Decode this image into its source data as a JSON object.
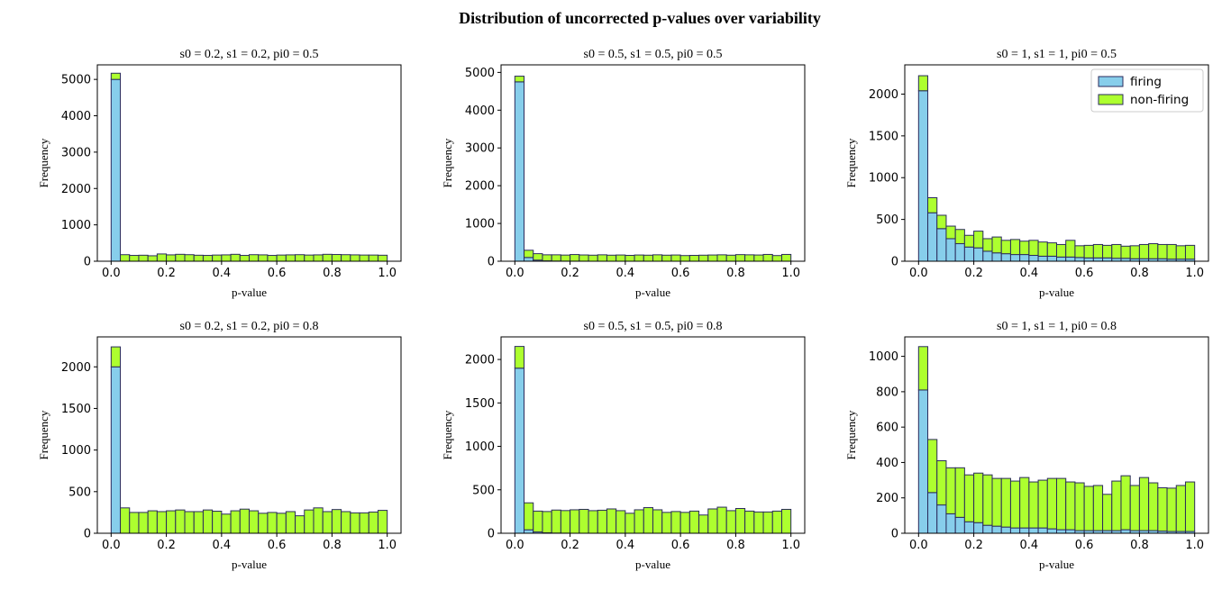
{
  "figure": {
    "title": "Distribution of uncorrected p-values over variability"
  },
  "colors": {
    "firing": "#87ceeb",
    "non_firing": "#adff2f",
    "edge": "#2b2b5c"
  },
  "legend": {
    "placement": "upper-right of top-right panel",
    "entries": [
      "firing",
      "non-firing"
    ]
  },
  "chart_data": [
    {
      "type": "bar",
      "stacked": true,
      "title": "s0 = 0.2, s1 = 0.2, pi0 = 0.5",
      "xlabel": "p-value",
      "ylabel": "Frequency",
      "xlim": [
        -0.05,
        1.05
      ],
      "ylim": [
        0,
        5400
      ],
      "xticks": [
        0.0,
        0.2,
        0.4,
        0.6,
        0.8,
        1.0
      ],
      "yticks": [
        0,
        1000,
        2000,
        3000,
        4000,
        5000
      ],
      "bins": 30,
      "series": [
        {
          "name": "firing",
          "values": [
            5000,
            0,
            0,
            0,
            0,
            0,
            0,
            0,
            0,
            0,
            0,
            0,
            0,
            0,
            0,
            0,
            0,
            0,
            0,
            0,
            0,
            0,
            0,
            0,
            0,
            0,
            0,
            0,
            0,
            0
          ]
        },
        {
          "name": "non-firing",
          "values": [
            170,
            180,
            160,
            165,
            150,
            200,
            175,
            190,
            180,
            165,
            160,
            170,
            175,
            190,
            160,
            180,
            175,
            160,
            170,
            175,
            180,
            170,
            175,
            190,
            185,
            180,
            175,
            170,
            170,
            165
          ]
        }
      ]
    },
    {
      "type": "bar",
      "stacked": true,
      "title": "s0 = 0.5, s1 = 0.5, pi0 = 0.5",
      "xlabel": "p-value",
      "ylabel": "Frequency",
      "xlim": [
        -0.05,
        1.05
      ],
      "ylim": [
        0,
        5200
      ],
      "xticks": [
        0.0,
        0.2,
        0.4,
        0.6,
        0.8,
        1.0
      ],
      "yticks": [
        0,
        1000,
        2000,
        3000,
        4000,
        5000
      ],
      "bins": 30,
      "series": [
        {
          "name": "firing",
          "values": [
            4750,
            100,
            30,
            10,
            5,
            3,
            2,
            1,
            0,
            0,
            0,
            0,
            0,
            0,
            0,
            0,
            0,
            0,
            0,
            0,
            0,
            0,
            0,
            0,
            0,
            0,
            0,
            0,
            0,
            0
          ]
        },
        {
          "name": "non-firing",
          "values": [
            150,
            190,
            170,
            160,
            165,
            160,
            175,
            165,
            160,
            170,
            160,
            165,
            155,
            165,
            160,
            170,
            160,
            165,
            150,
            155,
            160,
            165,
            170,
            160,
            175,
            170,
            165,
            180,
            150,
            180
          ]
        }
      ]
    },
    {
      "type": "bar",
      "stacked": true,
      "title": "s0 = 1, s1 = 1, pi0 = 0.5",
      "xlabel": "p-value",
      "ylabel": "Frequency",
      "xlim": [
        -0.05,
        1.05
      ],
      "ylim": [
        0,
        2350
      ],
      "xticks": [
        0.0,
        0.2,
        0.4,
        0.6,
        0.8,
        1.0
      ],
      "yticks": [
        0,
        500,
        1000,
        1500,
        2000
      ],
      "bins": 30,
      "series": [
        {
          "name": "firing",
          "values": [
            2040,
            580,
            390,
            270,
            210,
            170,
            160,
            120,
            100,
            90,
            80,
            80,
            70,
            60,
            60,
            50,
            50,
            45,
            40,
            40,
            40,
            35,
            35,
            30,
            30,
            30,
            30,
            25,
            25,
            25
          ]
        },
        {
          "name": "non-firing",
          "values": [
            180,
            180,
            160,
            150,
            170,
            140,
            200,
            150,
            190,
            160,
            180,
            160,
            180,
            170,
            160,
            150,
            200,
            140,
            150,
            160,
            150,
            165,
            145,
            155,
            170,
            180,
            170,
            175,
            160,
            165
          ]
        }
      ]
    },
    {
      "type": "bar",
      "stacked": true,
      "title": "s0 = 0.2, s1 = 0.2, pi0 = 0.8",
      "xlabel": "p-value",
      "ylabel": "Frequency",
      "xlim": [
        -0.05,
        1.05
      ],
      "ylim": [
        0,
        2360
      ],
      "xticks": [
        0.0,
        0.2,
        0.4,
        0.6,
        0.8,
        1.0
      ],
      "yticks": [
        0,
        500,
        1000,
        1500,
        2000
      ],
      "bins": 30,
      "series": [
        {
          "name": "firing",
          "values": [
            2000,
            0,
            0,
            0,
            0,
            0,
            0,
            0,
            0,
            0,
            0,
            0,
            0,
            0,
            0,
            0,
            0,
            0,
            0,
            0,
            0,
            0,
            0,
            0,
            0,
            0,
            0,
            0,
            0,
            0
          ]
        },
        {
          "name": "non-firing",
          "values": [
            240,
            305,
            250,
            250,
            270,
            260,
            270,
            280,
            260,
            260,
            280,
            265,
            230,
            270,
            290,
            270,
            240,
            250,
            240,
            260,
            210,
            280,
            305,
            260,
            285,
            260,
            245,
            245,
            255,
            275
          ]
        }
      ]
    },
    {
      "type": "bar",
      "stacked": true,
      "title": "s0 = 0.5, s1 = 0.5, pi0 = 0.8",
      "xlabel": "p-value",
      "ylabel": "Frequency",
      "xlim": [
        -0.05,
        1.05
      ],
      "ylim": [
        0,
        2260
      ],
      "xticks": [
        0.0,
        0.2,
        0.4,
        0.6,
        0.8,
        1.0
      ],
      "yticks": [
        0,
        500,
        1000,
        1500,
        2000
      ],
      "bins": 30,
      "series": [
        {
          "name": "firing",
          "values": [
            1900,
            40,
            15,
            5,
            2,
            1,
            0,
            0,
            0,
            0,
            0,
            0,
            0,
            0,
            0,
            0,
            0,
            0,
            0,
            0,
            0,
            0,
            0,
            0,
            0,
            0,
            0,
            0,
            0,
            0
          ]
        },
        {
          "name": "non-firing",
          "values": [
            250,
            310,
            240,
            245,
            265,
            260,
            270,
            275,
            260,
            265,
            280,
            260,
            230,
            270,
            295,
            270,
            240,
            250,
            240,
            255,
            210,
            280,
            300,
            260,
            285,
            255,
            245,
            245,
            255,
            275
          ]
        }
      ]
    },
    {
      "type": "bar",
      "stacked": true,
      "title": "s0 = 1, s1 = 1, pi0 = 0.8",
      "xlabel": "p-value",
      "ylabel": "Frequency",
      "xlim": [
        -0.05,
        1.05
      ],
      "ylim": [
        0,
        1110
      ],
      "xticks": [
        0.0,
        0.2,
        0.4,
        0.6,
        0.8,
        1.0
      ],
      "yticks": [
        0,
        200,
        400,
        600,
        800,
        1000
      ],
      "bins": 30,
      "series": [
        {
          "name": "firing",
          "values": [
            810,
            230,
            160,
            110,
            90,
            65,
            60,
            45,
            40,
            35,
            30,
            30,
            30,
            30,
            25,
            20,
            20,
            15,
            15,
            15,
            15,
            15,
            20,
            15,
            15,
            15,
            12,
            10,
            10,
            10
          ]
        },
        {
          "name": "non-firing",
          "values": [
            245,
            300,
            250,
            260,
            280,
            265,
            280,
            285,
            270,
            275,
            265,
            285,
            260,
            270,
            285,
            290,
            270,
            270,
            250,
            255,
            205,
            280,
            305,
            255,
            300,
            270,
            245,
            245,
            260,
            280
          ]
        }
      ]
    }
  ]
}
